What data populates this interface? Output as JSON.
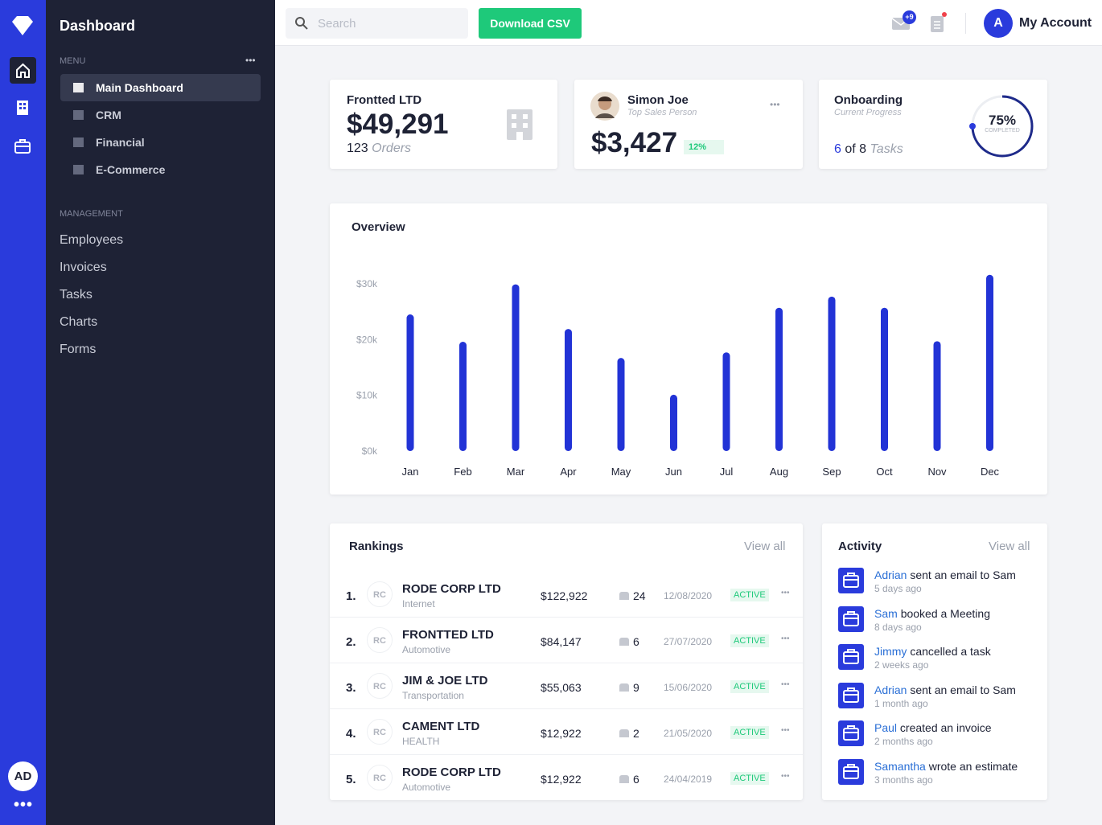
{
  "sidebar": {
    "title": "Dashboard",
    "menu_label": "MENU",
    "menu": [
      "Main Dashboard",
      "CRM",
      "Financial",
      "E-Commerce"
    ],
    "management_label": "MANAGEMENT",
    "management": [
      "Employees",
      "Invoices",
      "Tasks",
      "Charts",
      "Forms"
    ]
  },
  "rail": {
    "avatar": "AD"
  },
  "topbar": {
    "search_placeholder": "Search",
    "download": "Download CSV",
    "mail_badge": "+9",
    "account_initial": "A",
    "account": "My Account"
  },
  "cards": {
    "company": {
      "name": "Frontted LTD",
      "amount": "$49,291",
      "orders_count": "123",
      "orders_label": "Orders"
    },
    "person": {
      "name": "Simon Joe",
      "role": "Top Sales Person",
      "amount": "$3,427",
      "change": "12%"
    },
    "onboarding": {
      "title": "Onboarding",
      "subtitle": "Current Progress",
      "done": "6",
      "of": "of 8",
      "tasks": "Tasks",
      "progress": 75,
      "progress_label": "75%",
      "completed": "COMPLETED"
    }
  },
  "overview": {
    "type": "bar",
    "title": "Overview",
    "categories": [
      "Jan",
      "Feb",
      "Mar",
      "Apr",
      "May",
      "Jun",
      "Jul",
      "Aug",
      "Sep",
      "Oct",
      "Nov",
      "Dec"
    ],
    "values": [
      24500,
      19600,
      29900,
      21900,
      16700,
      10100,
      17700,
      25700,
      27700,
      25700,
      19700,
      31600
    ],
    "color": "#2233d6",
    "ylim": [
      0,
      32000
    ],
    "yticks": [
      {
        "value": 0,
        "label": "$0k"
      },
      {
        "value": 10000,
        "label": "$10k"
      },
      {
        "value": 20000,
        "label": "$20k"
      },
      {
        "value": 30000,
        "label": "$30k"
      }
    ]
  },
  "rankings": {
    "title": "Rankings",
    "view_all": "View all",
    "rows": [
      {
        "rank": "1.",
        "initials": "RC",
        "name": "RODE CORP LTD",
        "sector": "Internet",
        "amount": "$122,922",
        "count": "24",
        "date": "12/08/2020",
        "status": "ACTIVE"
      },
      {
        "rank": "2.",
        "initials": "RC",
        "name": "FRONTTED LTD",
        "sector": "Automotive",
        "amount": "$84,147",
        "count": "6",
        "date": "27/07/2020",
        "status": "ACTIVE"
      },
      {
        "rank": "3.",
        "initials": "RC",
        "name": "JIM & JOE LTD",
        "sector": "Transportation",
        "amount": "$55,063",
        "count": "9",
        "date": "15/06/2020",
        "status": "ACTIVE"
      },
      {
        "rank": "4.",
        "initials": "RC",
        "name": "CAMENT LTD",
        "sector": "HEALTH",
        "amount": "$12,922",
        "count": "2",
        "date": "21/05/2020",
        "status": "ACTIVE"
      },
      {
        "rank": "5.",
        "initials": "RC",
        "name": "RODE CORP LTD",
        "sector": "Automotive",
        "amount": "$12,922",
        "count": "6",
        "date": "24/04/2019",
        "status": "ACTIVE"
      }
    ]
  },
  "activity": {
    "title": "Activity",
    "view_all": "View all",
    "items": [
      {
        "who": "Adrian",
        "action": "sent an email to Sam",
        "time": "5 days ago"
      },
      {
        "who": "Sam",
        "action": "booked a Meeting",
        "time": "8 days ago"
      },
      {
        "who": "Jimmy",
        "action": "cancelled a task",
        "time": "2 weeks ago"
      },
      {
        "who": "Adrian",
        "action": "sent an email to Sam",
        "time": "1 month ago"
      },
      {
        "who": "Paul",
        "action": "created an invoice",
        "time": "2 months ago"
      },
      {
        "who": "Samantha",
        "action": "wrote an estimate",
        "time": "3 months ago"
      }
    ]
  }
}
